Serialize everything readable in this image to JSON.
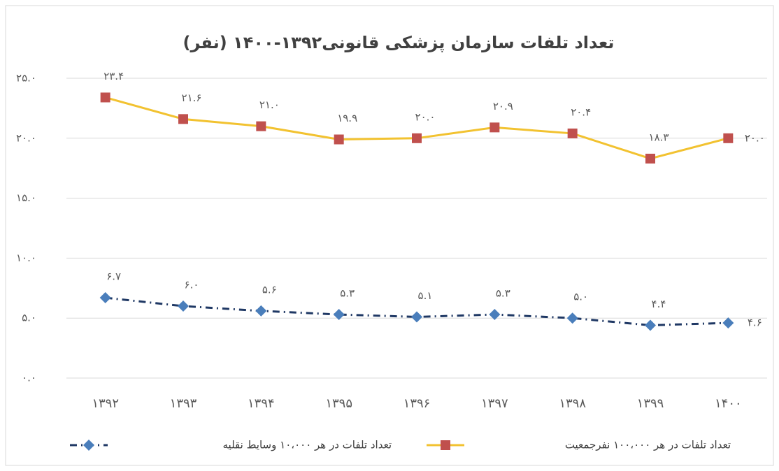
{
  "chart_data": {
    "type": "line",
    "title": "تعداد تلفات سازمان پزشکی قانونی۱۳۹۲-۱۴۰۰ (نفر)",
    "categories": [
      "۱۳۹۲",
      "۱۳۹۳",
      "۱۳۹۴",
      "۱۳۹۵",
      "۱۳۹۶",
      "۱۳۹۷",
      "۱۳۹۸",
      "۱۳۹۹",
      "۱۴۰۰"
    ],
    "series": [
      {
        "name": "تعداد تلفات در هر ۱۰۰،۰۰۰ نفرجمعیت",
        "color": "#f2c230",
        "marker_color": "#c0504d",
        "values": [
          23.4,
          21.6,
          21.0,
          19.9,
          20.0,
          20.9,
          20.4,
          18.3,
          20.0
        ],
        "value_labels": [
          "۲۳.۴",
          "۲۱.۶",
          "۲۱.۰",
          "۱۹.۹",
          "۲۰.۰",
          "۲۰.۹",
          "۲۰.۴",
          "۱۸.۳",
          "۲۰.۰"
        ]
      },
      {
        "name": "تعداد تلفات در هر ۱۰،۰۰۰ وسایط نقلیه",
        "color": "#1f3864",
        "marker_color": "#4a7ebb",
        "values": [
          6.7,
          6.0,
          5.6,
          5.3,
          5.1,
          5.3,
          5.0,
          4.4,
          4.6
        ],
        "value_labels": [
          "۶.۷",
          "۶.۰",
          "۵.۶",
          "۵.۳",
          "۵.۱",
          "۵.۳",
          "۵.۰",
          "۴.۴",
          "۴.۶"
        ]
      }
    ],
    "ylim": [
      0,
      25
    ],
    "yticks": [
      {
        "value": 0,
        "label": "۰.۰"
      },
      {
        "value": 5,
        "label": "۵.۰"
      },
      {
        "value": 10,
        "label": "۱۰.۰"
      },
      {
        "value": 15,
        "label": "۱۵.۰"
      },
      {
        "value": 20,
        "label": "۲۰.۰"
      },
      {
        "value": 25,
        "label": "۲۵.۰"
      }
    ],
    "grid": true
  }
}
